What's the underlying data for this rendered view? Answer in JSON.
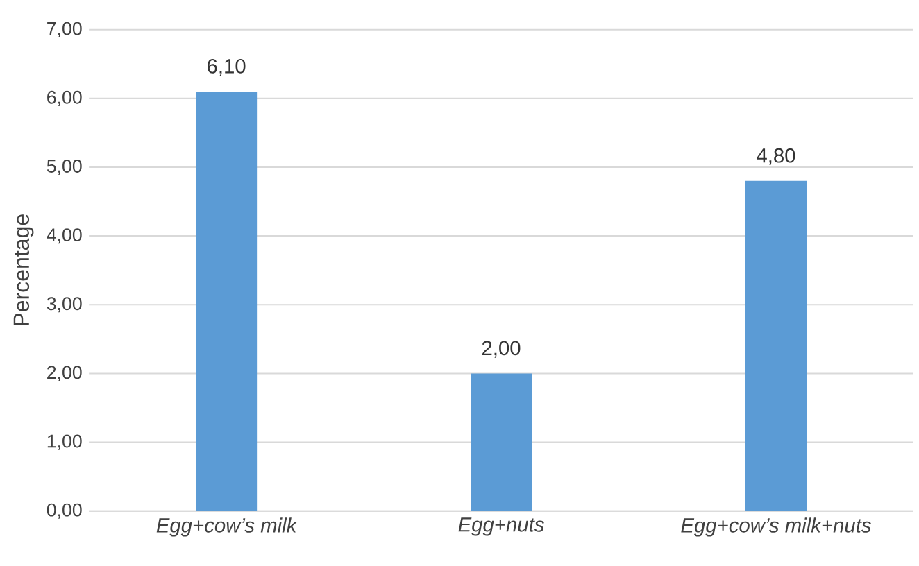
{
  "chart_data": {
    "type": "bar",
    "ylabel": "Percentage",
    "categories": [
      "Egg+cow’s milk",
      "Egg+nuts",
      "Egg+cow’s milk+nuts"
    ],
    "values": [
      6.1,
      2.0,
      4.8
    ],
    "color": "#5b9bd5",
    "value_labels": [
      "6,10",
      "2,00",
      "4,80"
    ],
    "ylim": [
      0,
      7
    ],
    "yticks": [
      {
        "value": 0,
        "label": "0,00"
      },
      {
        "value": 1,
        "label": "1,00"
      },
      {
        "value": 2,
        "label": "2,00"
      },
      {
        "value": 3,
        "label": "3,00"
      },
      {
        "value": 4,
        "label": "4,00"
      },
      {
        "value": 5,
        "label": "5,00"
      },
      {
        "value": 6,
        "label": "6,00"
      },
      {
        "value": 7,
        "label": "7,00"
      }
    ],
    "grid": "y"
  }
}
